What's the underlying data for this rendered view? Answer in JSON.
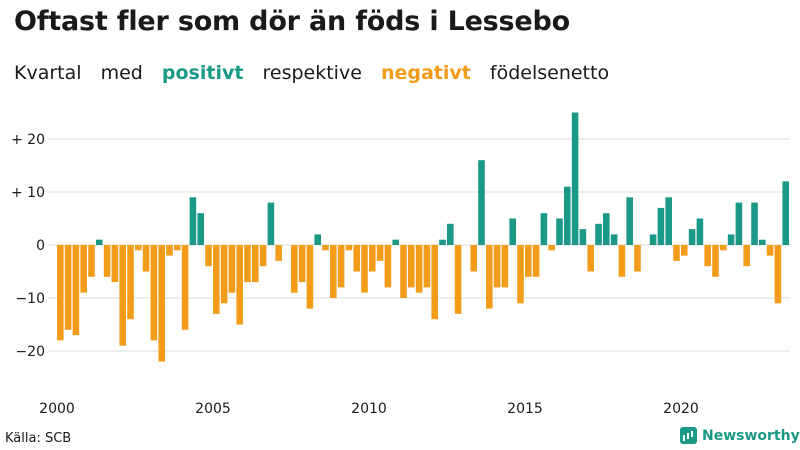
{
  "title": "Oftast fler som dör än föds i Lessebo",
  "subtitle": {
    "part1": "Kvartal",
    "part2": "med",
    "positive_word": "positivt",
    "part3": "respektive",
    "negative_word": "negativt",
    "part4": "födelsenetto"
  },
  "source": "Källa: SCB",
  "brand": "Newsworthy",
  "colors": {
    "positive": "#1a9986",
    "negative": "#f39c1a",
    "grid": "#dddddd",
    "text": "#1a1a1a"
  },
  "chart_data": {
    "type": "bar",
    "x_start": "2000 Q1",
    "x_ticks": [
      {
        "label": "2000",
        "index": 0
      },
      {
        "label": "2005",
        "index": 20
      },
      {
        "label": "2010",
        "index": 40
      },
      {
        "label": "2015",
        "index": 60
      },
      {
        "label": "2020",
        "index": 80
      }
    ],
    "ylim": [
      -25,
      27
    ],
    "y_ticks": [
      {
        "value": 20,
        "label": "+ 20"
      },
      {
        "value": 10,
        "label": "+ 10"
      },
      {
        "value": 0,
        "label": "0"
      },
      {
        "value": -10,
        "label": "−10"
      },
      {
        "value": -20,
        "label": "−20"
      }
    ],
    "grid": true,
    "values": [
      -18,
      -16,
      -17,
      -9,
      -6,
      1,
      -6,
      -7,
      -19,
      -14,
      -1,
      -5,
      -18,
      -22,
      -2,
      -1,
      -16,
      9,
      6,
      -4,
      -13,
      -11,
      -9,
      -15,
      -7,
      -7,
      -4,
      8,
      -3,
      0,
      -9,
      -7,
      -12,
      2,
      -1,
      -10,
      -8,
      -1,
      -5,
      -9,
      -5,
      -3,
      -8,
      1,
      -10,
      -8,
      -9,
      -8,
      -14,
      1,
      4,
      -13,
      0,
      -5,
      16,
      -12,
      -8,
      -8,
      5,
      -11,
      -6,
      -6,
      6,
      -1,
      5,
      11,
      25,
      3,
      -5,
      4,
      6,
      2,
      -6,
      9,
      -5,
      0,
      2,
      7,
      9,
      -3,
      -2,
      3,
      5,
      -4,
      -6,
      -1,
      2,
      8,
      -4,
      8,
      1,
      -2,
      -11,
      12
    ]
  }
}
